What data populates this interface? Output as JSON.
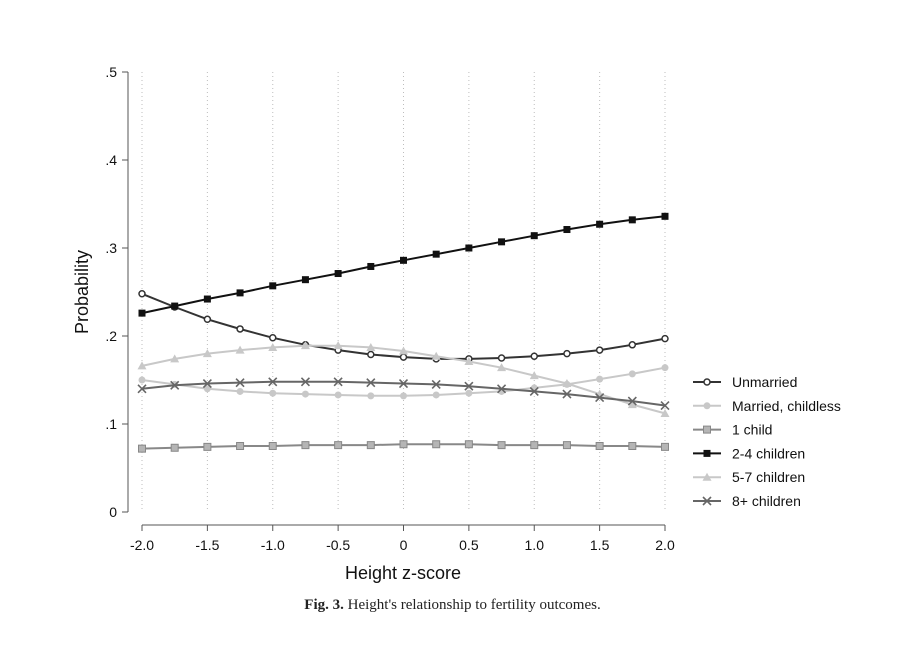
{
  "figure": {
    "caption_label": "Fig. 3.",
    "caption_text": "Height's relationship to fertility outcomes."
  },
  "chart_data": {
    "type": "line",
    "xlabel": "Height z-score",
    "ylabel": "Probability",
    "xlim": [
      -2.0,
      2.0
    ],
    "ylim": [
      0,
      0.5
    ],
    "x_ticks": [
      "-2.0",
      "-1.5",
      "-1.0",
      "-0.5",
      "0",
      "0.5",
      "1.0",
      "1.5",
      "2.0"
    ],
    "y_ticks": [
      "0",
      ".1",
      ".2",
      ".3",
      ".4",
      ".5"
    ],
    "grid": "vertical dotted",
    "legend_position": "right",
    "x": [
      -2.0,
      -1.75,
      -1.5,
      -1.25,
      -1.0,
      -0.75,
      -0.5,
      -0.25,
      0.0,
      0.25,
      0.5,
      0.75,
      1.0,
      1.25,
      1.5,
      1.75,
      2.0
    ],
    "series": [
      {
        "name": "Unmarried",
        "marker": "open-circle",
        "color": "#333333",
        "values": [
          0.248,
          0.233,
          0.219,
          0.208,
          0.198,
          0.19,
          0.184,
          0.179,
          0.176,
          0.174,
          0.174,
          0.175,
          0.177,
          0.18,
          0.184,
          0.19,
          0.197
        ]
      },
      {
        "name": "Married, childless",
        "marker": "filled-circle",
        "color": "#c8c8c8",
        "values": [
          0.15,
          0.145,
          0.14,
          0.137,
          0.135,
          0.134,
          0.133,
          0.132,
          0.132,
          0.133,
          0.135,
          0.137,
          0.141,
          0.145,
          0.151,
          0.157,
          0.164
        ]
      },
      {
        "name": "1 child",
        "marker": "square",
        "color": "#888888",
        "values": [
          0.072,
          0.073,
          0.074,
          0.075,
          0.075,
          0.076,
          0.076,
          0.076,
          0.077,
          0.077,
          0.077,
          0.076,
          0.076,
          0.076,
          0.075,
          0.075,
          0.074
        ]
      },
      {
        "name": "2-4 children",
        "marker": "filled-square",
        "color": "#111111",
        "values": [
          0.226,
          0.234,
          0.242,
          0.249,
          0.257,
          0.264,
          0.271,
          0.279,
          0.286,
          0.293,
          0.3,
          0.307,
          0.314,
          0.321,
          0.327,
          0.332,
          0.336
        ]
      },
      {
        "name": "5-7 children",
        "marker": "triangle",
        "color": "#c8c8c8",
        "values": [
          0.166,
          0.174,
          0.18,
          0.184,
          0.187,
          0.189,
          0.189,
          0.187,
          0.183,
          0.177,
          0.171,
          0.164,
          0.155,
          0.146,
          0.134,
          0.122,
          0.112
        ]
      },
      {
        "name": "8+ children",
        "marker": "x",
        "color": "#666666",
        "values": [
          0.14,
          0.144,
          0.146,
          0.147,
          0.148,
          0.148,
          0.148,
          0.147,
          0.146,
          0.145,
          0.143,
          0.14,
          0.137,
          0.134,
          0.13,
          0.126,
          0.121
        ]
      }
    ]
  }
}
